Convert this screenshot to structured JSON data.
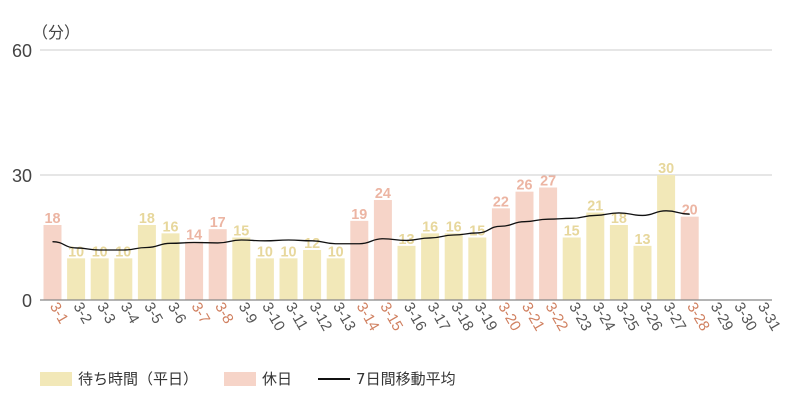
{
  "chart_data": {
    "type": "bar",
    "unit_label": "（分）",
    "categories": [
      "3-1",
      "3-2",
      "3-3",
      "3-4",
      "3-5",
      "3-6",
      "3-7",
      "3-8",
      "3-9",
      "3-10",
      "3-11",
      "3-12",
      "3-13",
      "3-14",
      "3-15",
      "3-16",
      "3-17",
      "3-18",
      "3-19",
      "3-20",
      "3-21",
      "3-22",
      "3-23",
      "3-24",
      "3-25",
      "3-26",
      "3-27",
      "3-28",
      "3-29",
      "3-30",
      "3-31"
    ],
    "values": [
      18,
      10,
      10,
      10,
      18,
      16,
      14,
      17,
      15,
      10,
      10,
      12,
      10,
      19,
      24,
      13,
      16,
      16,
      15,
      22,
      26,
      27,
      15,
      21,
      18,
      13,
      30,
      20,
      null,
      null,
      null
    ],
    "day_type": [
      "holiday",
      "weekday",
      "weekday",
      "weekday",
      "weekday",
      "weekday",
      "holiday",
      "holiday",
      "weekday",
      "weekday",
      "weekday",
      "weekday",
      "weekday",
      "holiday",
      "holiday",
      "weekday",
      "weekday",
      "weekday",
      "weekday",
      "holiday",
      "holiday",
      "holiday",
      "weekday",
      "weekday",
      "weekday",
      "weekday",
      "weekday",
      "holiday",
      "weekday",
      "weekday",
      "weekday"
    ],
    "moving_average": [
      14.0,
      12.5,
      12.0,
      12.0,
      12.6,
      13.6,
      13.8,
      13.7,
      14.4,
      14.2,
      14.4,
      14.2,
      13.5,
      13.5,
      14.7,
      14.3,
      14.9,
      15.6,
      16.1,
      17.7,
      18.8,
      19.4,
      19.6,
      20.3,
      20.9,
      20.3,
      21.4,
      20.6,
      null,
      null,
      null
    ],
    "y_ticks": [
      0,
      30,
      60
    ],
    "ylim": [
      0,
      60
    ],
    "grid": true,
    "legend": {
      "position": "bottom-left",
      "items": [
        {
          "label": "待ち時間（平日）",
          "kind": "bar",
          "color": "#f2e8b8"
        },
        {
          "label": "休日",
          "kind": "bar",
          "color": "#f6d4c8"
        },
        {
          "label": "7日間移動平均",
          "kind": "line",
          "color": "#111111"
        }
      ]
    },
    "colors": {
      "weekday_bar": "#f2e8b8",
      "weekday_label": "#e7d79c",
      "holiday_bar": "#f6d4c8",
      "holiday_label": "#ecb5a3",
      "holiday_tick": "#d08060",
      "weekday_tick": "#555555",
      "grid": "#cccccc",
      "axis": "#888888",
      "line": "#111111"
    }
  }
}
